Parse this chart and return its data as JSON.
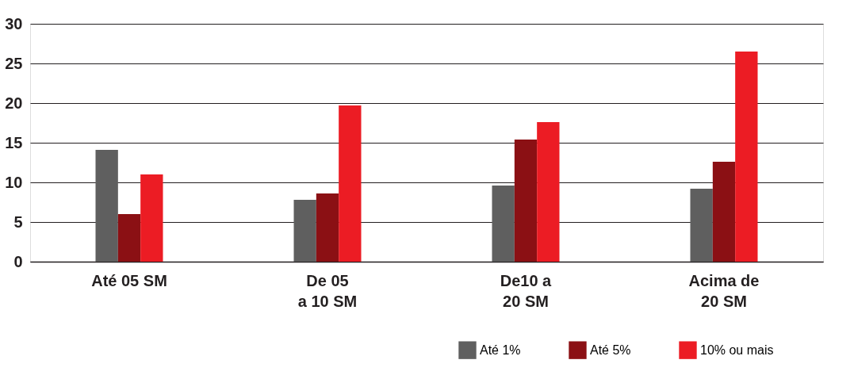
{
  "chart_data": {
    "type": "bar",
    "categories": [
      "Até 05 SM",
      "De 05\na 10 SM",
      "De10 a\n20 SM",
      "Acima de\n20 SM"
    ],
    "series": [
      {
        "name": "Até 1%",
        "color": "#5f5f5f",
        "values": [
          14.1,
          7.8,
          9.6,
          9.2
        ]
      },
      {
        "name": "Até 5%",
        "color": "#8b1014",
        "values": [
          6.0,
          8.6,
          15.4,
          12.6
        ]
      },
      {
        "name": "10% ou mais",
        "color": "#ec1c24",
        "values": [
          11.0,
          19.7,
          17.6,
          26.5
        ]
      }
    ],
    "ylim": [
      0,
      30
    ],
    "yticks": [
      0,
      5,
      10,
      15,
      20,
      25,
      30
    ],
    "grid": "y",
    "legend": "bottom right"
  }
}
